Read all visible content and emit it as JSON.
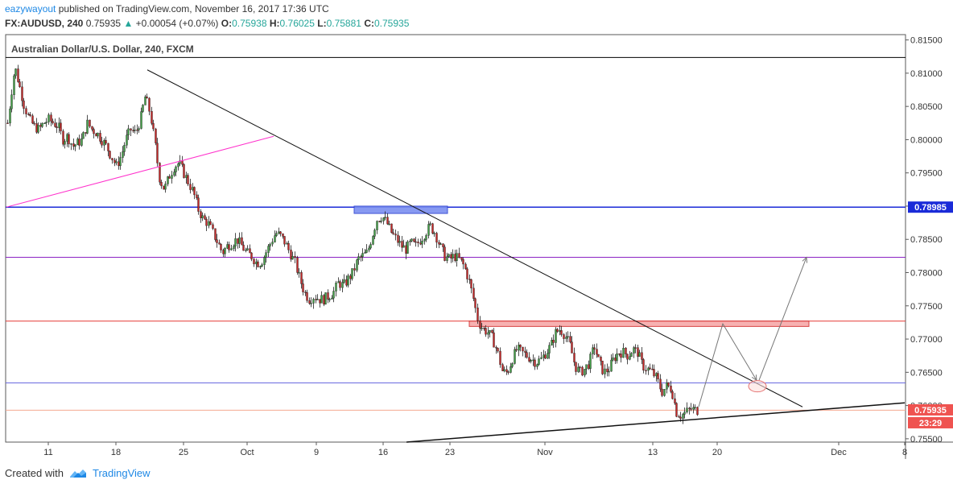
{
  "header": {
    "user": "eazywayout",
    "published_text": "published on TradingView.com, November 16, 2017 17:36 UTC",
    "symbol": "FX:AUDUSD, 240",
    "last": "0.75935",
    "change": "+0.00054 (+0.07%)",
    "o_label": "O:",
    "o_value": "0.75938",
    "h_label": "H:",
    "h_value": "0.76025",
    "l_label": "L:",
    "l_value": "0.75881",
    "c_label": "C:",
    "c_value": "0.75935"
  },
  "footer": {
    "created_with": "Created with",
    "brand": "TradingView"
  },
  "colors": {
    "up": "#26a69a",
    "down": "#ef5350",
    "candle_up_body": "#43a047",
    "candle_down_body": "#c62828"
  },
  "chart_data": {
    "type": "candlestick",
    "title": "Australian Dollar/U.S. Dollar, 240, FXCM",
    "y_ticks": [
      "0.81500",
      "0.81000",
      "0.80500",
      "0.80000",
      "0.79500",
      "0.79000",
      "0.78500",
      "0.78000",
      "0.77500",
      "0.77000",
      "0.76500",
      "0.76000",
      "0.75500"
    ],
    "ylim": [
      0.7545,
      0.8158
    ],
    "x_ticks": [
      "11",
      "18",
      "25",
      "Oct",
      "9",
      "16",
      "23",
      "Nov",
      "13",
      "20",
      "Dec",
      "8"
    ],
    "price_labels": [
      {
        "value": "0.78985",
        "color": "#1a2bd8"
      },
      {
        "value": "0.75935",
        "color": "#ef5350"
      },
      {
        "value": "23:29",
        "color": "#ef5350"
      }
    ],
    "close_path": [
      [
        0,
        0.8
      ],
      [
        6,
        0.7995
      ],
      [
        12,
        0.8055
      ],
      [
        18,
        0.811
      ],
      [
        24,
        0.808
      ],
      [
        30,
        0.805
      ],
      [
        36,
        0.803
      ],
      [
        42,
        0.802
      ],
      [
        48,
        0.8015
      ],
      [
        54,
        0.8025
      ],
      [
        60,
        0.803
      ],
      [
        66,
        0.8025
      ],
      [
        72,
        0.802
      ],
      [
        78,
        0.8
      ],
      [
        84,
        0.8005
      ],
      [
        90,
        0.799
      ],
      [
        96,
        0.7995
      ],
      [
        102,
        0.8
      ],
      [
        108,
        0.8025
      ],
      [
        114,
        0.8015
      ],
      [
        120,
        0.801
      ],
      [
        126,
        0.8
      ],
      [
        132,
        0.799
      ],
      [
        138,
        0.7975
      ],
      [
        144,
        0.796
      ],
      [
        150,
        0.7975
      ],
      [
        156,
        0.8
      ],
      [
        162,
        0.8015
      ],
      [
        168,
        0.801
      ],
      [
        174,
        0.803
      ],
      [
        180,
        0.8065
      ],
      [
        186,
        0.804
      ],
      [
        192,
        0.7995
      ],
      [
        198,
        0.794
      ],
      [
        204,
        0.7925
      ],
      [
        210,
        0.7945
      ],
      [
        216,
        0.796
      ],
      [
        222,
        0.7965
      ],
      [
        228,
        0.795
      ],
      [
        234,
        0.7935
      ],
      [
        240,
        0.792
      ],
      [
        246,
        0.7895
      ],
      [
        252,
        0.788
      ],
      [
        258,
        0.7875
      ],
      [
        264,
        0.786
      ],
      [
        270,
        0.7845
      ],
      [
        276,
        0.783
      ],
      [
        282,
        0.784
      ],
      [
        288,
        0.7845
      ],
      [
        294,
        0.785
      ],
      [
        300,
        0.784
      ],
      [
        306,
        0.783
      ],
      [
        312,
        0.7825
      ],
      [
        318,
        0.7815
      ],
      [
        324,
        0.7815
      ],
      [
        330,
        0.783
      ],
      [
        336,
        0.7845
      ],
      [
        342,
        0.786
      ],
      [
        348,
        0.7855
      ],
      [
        354,
        0.7845
      ],
      [
        360,
        0.783
      ],
      [
        366,
        0.7815
      ],
      [
        372,
        0.779
      ],
      [
        378,
        0.777
      ],
      [
        384,
        0.776
      ],
      [
        390,
        0.7765
      ],
      [
        396,
        0.776
      ],
      [
        402,
        0.776
      ],
      [
        408,
        0.7765
      ],
      [
        414,
        0.777
      ],
      [
        420,
        0.7785
      ],
      [
        426,
        0.778
      ],
      [
        432,
        0.779
      ],
      [
        438,
        0.78
      ],
      [
        444,
        0.782
      ],
      [
        450,
        0.7825
      ],
      [
        456,
        0.783
      ],
      [
        462,
        0.7855
      ],
      [
        468,
        0.788
      ],
      [
        474,
        0.7885
      ],
      [
        480,
        0.7875
      ],
      [
        486,
        0.786
      ],
      [
        492,
        0.785
      ],
      [
        498,
        0.784
      ],
      [
        504,
        0.7835
      ],
      [
        510,
        0.7845
      ],
      [
        516,
        0.784
      ],
      [
        522,
        0.785
      ],
      [
        528,
        0.786
      ],
      [
        534,
        0.787
      ],
      [
        540,
        0.786
      ],
      [
        546,
        0.784
      ],
      [
        552,
        0.7825
      ],
      [
        558,
        0.782
      ],
      [
        564,
        0.7825
      ],
      [
        570,
        0.782
      ],
      [
        576,
        0.781
      ],
      [
        582,
        0.779
      ],
      [
        588,
        0.776
      ],
      [
        594,
        0.7725
      ],
      [
        600,
        0.7715
      ],
      [
        606,
        0.771
      ],
      [
        612,
        0.77
      ],
      [
        618,
        0.768
      ],
      [
        624,
        0.765
      ],
      [
        630,
        0.765
      ],
      [
        636,
        0.767
      ],
      [
        642,
        0.7685
      ],
      [
        648,
        0.768
      ],
      [
        654,
        0.7675
      ],
      [
        660,
        0.767
      ],
      [
        666,
        0.7665
      ],
      [
        672,
        0.767
      ],
      [
        678,
        0.768
      ],
      [
        684,
        0.769
      ],
      [
        690,
        0.771
      ],
      [
        696,
        0.7715
      ],
      [
        702,
        0.7705
      ],
      [
        708,
        0.769
      ],
      [
        714,
        0.766
      ],
      [
        720,
        0.765
      ],
      [
        726,
        0.7655
      ],
      [
        732,
        0.7665
      ],
      [
        738,
        0.769
      ],
      [
        744,
        0.7665
      ],
      [
        750,
        0.765
      ],
      [
        756,
        0.7655
      ],
      [
        762,
        0.767
      ],
      [
        768,
        0.768
      ],
      [
        774,
        0.768
      ],
      [
        780,
        0.7675
      ],
      [
        786,
        0.7685
      ],
      [
        792,
        0.768
      ],
      [
        798,
        0.766
      ],
      [
        804,
        0.7655
      ],
      [
        810,
        0.765
      ],
      [
        816,
        0.764
      ],
      [
        822,
        0.762
      ],
      [
        828,
        0.763
      ],
      [
        834,
        0.7625
      ],
      [
        840,
        0.759
      ],
      [
        846,
        0.7585
      ],
      [
        852,
        0.759
      ],
      [
        858,
        0.7595
      ],
      [
        864,
        0.7593
      ]
    ],
    "drawings": {
      "horizontal_lines": [
        {
          "y": 0.81237,
          "color": "#000000",
          "width": 1
        },
        {
          "y": 0.78985,
          "color": "#1a2bd8",
          "width": 1.5
        },
        {
          "y": 0.7823,
          "color": "#8b23c4",
          "width": 1
        },
        {
          "y": 0.7727,
          "color": "#e53935",
          "width": 1
        },
        {
          "y": 0.7634,
          "color": "#6a6ae0",
          "width": 1
        },
        {
          "y": 0.7593,
          "color": "#f4a890",
          "width": 1
        }
      ],
      "zones": [
        {
          "x1": 440,
          "x2": 556,
          "y_top": 0.79,
          "y_bottom": 0.7889,
          "fill": "#7b8ff0",
          "stroke": "#2e43d1"
        },
        {
          "x1": 583,
          "x2": 1005,
          "y_top": 0.7727,
          "y_bottom": 0.7719,
          "fill": "#f7a9a9",
          "stroke": "#d32f2f"
        }
      ],
      "trend_lines": [
        {
          "x1": 183,
          "y1": 0.8105,
          "x2": 997,
          "y2": 0.7598,
          "color": "#111111",
          "width": 1
        },
        {
          "x1": 8,
          "y1": 0.78985,
          "x2": 340,
          "y2": 0.8005,
          "color": "#ff33cc",
          "width": 1
        },
        {
          "x1": 505,
          "y1": 0.7545,
          "x2": 1124,
          "y2": 0.7604,
          "color": "#111111",
          "width": 1.5
        }
      ],
      "projection_arrows": [
        {
          "points": [
            [
              868,
              0.7598
            ],
            [
              898,
              0.7723
            ],
            [
              940,
              0.7638
            ]
          ]
        },
        {
          "points": [
            [
              943,
              0.7638
            ],
            [
              1002,
              0.7823
            ]
          ]
        }
      ],
      "ellipse": {
        "cx": 941,
        "cy": 0.7629,
        "rx": 11,
        "ry": 7,
        "stroke": "#e57373",
        "fill": "#fde0dc"
      }
    }
  }
}
